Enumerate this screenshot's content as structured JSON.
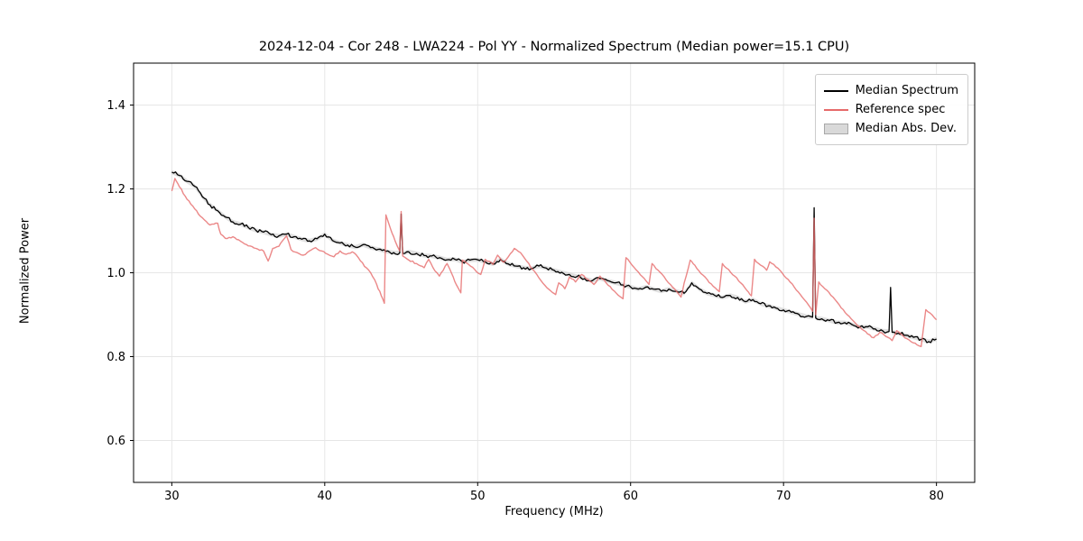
{
  "chart_data": {
    "type": "line",
    "title": "2024-12-04 - Cor 248 - LWA224 - Pol YY - Normalized Spectrum (Median power=15.1 CPU)",
    "xlabel": "Frequency (MHz)",
    "ylabel": "Normalized Power",
    "xlim": [
      27.5,
      82.5
    ],
    "ylim": [
      0.5,
      1.5
    ],
    "xticks": [
      30,
      40,
      50,
      60,
      70,
      80
    ],
    "yticks": [
      0.6,
      0.8,
      1.0,
      1.2,
      1.4
    ],
    "grid": true,
    "legend": {
      "position": "upper right",
      "entries": [
        "Median Spectrum",
        "Reference spec",
        "Median Abs. Dev."
      ]
    },
    "colors": {
      "median": "#000000",
      "reference": "#e66a6a",
      "band": "#c9c9c9"
    },
    "mad_band_halfwidth": 0.005,
    "series": [
      {
        "name": "Median Spectrum",
        "color": "#000000",
        "points": [
          [
            30.0,
            1.24
          ],
          [
            30.5,
            1.232
          ],
          [
            31.0,
            1.218
          ],
          [
            31.5,
            1.206
          ],
          [
            32.0,
            1.181
          ],
          [
            32.5,
            1.162
          ],
          [
            33.0,
            1.148
          ],
          [
            33.5,
            1.133
          ],
          [
            34.0,
            1.121
          ],
          [
            34.5,
            1.116
          ],
          [
            35.0,
            1.108
          ],
          [
            35.5,
            1.101
          ],
          [
            36.0,
            1.097
          ],
          [
            36.5,
            1.091
          ],
          [
            37.0,
            1.088
          ],
          [
            37.5,
            1.092
          ],
          [
            38.0,
            1.086
          ],
          [
            38.5,
            1.08
          ],
          [
            39.0,
            1.076
          ],
          [
            39.5,
            1.081
          ],
          [
            40.0,
            1.092
          ],
          [
            40.5,
            1.077
          ],
          [
            41.0,
            1.071
          ],
          [
            41.5,
            1.066
          ],
          [
            42.0,
            1.061
          ],
          [
            42.5,
            1.067
          ],
          [
            43.0,
            1.06
          ],
          [
            43.5,
            1.056
          ],
          [
            44.0,
            1.051
          ],
          [
            44.5,
            1.048
          ],
          [
            44.9,
            1.047
          ],
          [
            45.0,
            1.14
          ],
          [
            45.1,
            1.046
          ],
          [
            45.5,
            1.05
          ],
          [
            46.0,
            1.046
          ],
          [
            46.5,
            1.041
          ],
          [
            47.0,
            1.04
          ],
          [
            47.5,
            1.036
          ],
          [
            48.0,
            1.031
          ],
          [
            48.5,
            1.032
          ],
          [
            49.0,
            1.026
          ],
          [
            49.5,
            1.03
          ],
          [
            50.0,
            1.031
          ],
          [
            50.5,
            1.026
          ],
          [
            51.0,
            1.021
          ],
          [
            51.5,
            1.032
          ],
          [
            52.0,
            1.021
          ],
          [
            52.5,
            1.016
          ],
          [
            53.0,
            1.012
          ],
          [
            53.5,
            1.01
          ],
          [
            54.0,
            1.016
          ],
          [
            54.5,
            1.011
          ],
          [
            55.0,
            1.006
          ],
          [
            55.5,
            1.001
          ],
          [
            56.0,
            0.996
          ],
          [
            56.5,
            0.991
          ],
          [
            57.0,
            0.986
          ],
          [
            57.5,
            0.981
          ],
          [
            58.0,
            0.986
          ],
          [
            58.5,
            0.981
          ],
          [
            59.0,
            0.976
          ],
          [
            59.5,
            0.971
          ],
          [
            60.0,
            0.966
          ],
          [
            60.5,
            0.961
          ],
          [
            61.0,
            0.966
          ],
          [
            61.5,
            0.961
          ],
          [
            62.0,
            0.956
          ],
          [
            62.5,
            0.961
          ],
          [
            63.0,
            0.956
          ],
          [
            63.5,
            0.951
          ],
          [
            64.0,
            0.976
          ],
          [
            64.5,
            0.961
          ],
          [
            65.0,
            0.951
          ],
          [
            65.5,
            0.946
          ],
          [
            66.0,
            0.941
          ],
          [
            66.5,
            0.946
          ],
          [
            67.0,
            0.941
          ],
          [
            67.5,
            0.931
          ],
          [
            68.0,
            0.936
          ],
          [
            68.5,
            0.926
          ],
          [
            69.0,
            0.921
          ],
          [
            69.5,
            0.916
          ],
          [
            70.0,
            0.911
          ],
          [
            70.5,
            0.906
          ],
          [
            71.0,
            0.901
          ],
          [
            71.5,
            0.896
          ],
          [
            71.9,
            0.894
          ],
          [
            72.0,
            1.155
          ],
          [
            72.1,
            0.892
          ],
          [
            72.5,
            0.89
          ],
          [
            73.0,
            0.886
          ],
          [
            73.5,
            0.881
          ],
          [
            74.0,
            0.881
          ],
          [
            74.5,
            0.876
          ],
          [
            75.0,
            0.871
          ],
          [
            75.5,
            0.871
          ],
          [
            76.0,
            0.866
          ],
          [
            76.5,
            0.861
          ],
          [
            76.9,
            0.86
          ],
          [
            77.0,
            0.965
          ],
          [
            77.1,
            0.858
          ],
          [
            77.5,
            0.856
          ],
          [
            78.0,
            0.851
          ],
          [
            78.5,
            0.846
          ],
          [
            79.0,
            0.841
          ],
          [
            79.5,
            0.836
          ],
          [
            80.0,
            0.842
          ]
        ]
      },
      {
        "name": "Reference spec",
        "color": "#e66a6a",
        "points": [
          [
            30.0,
            1.195
          ],
          [
            30.2,
            1.225
          ],
          [
            30.5,
            1.205
          ],
          [
            31.0,
            1.175
          ],
          [
            31.5,
            1.152
          ],
          [
            32.0,
            1.131
          ],
          [
            32.5,
            1.114
          ],
          [
            33.0,
            1.118
          ],
          [
            33.2,
            1.092
          ],
          [
            33.5,
            1.082
          ],
          [
            34.0,
            1.086
          ],
          [
            34.5,
            1.075
          ],
          [
            35.0,
            1.064
          ],
          [
            35.5,
            1.058
          ],
          [
            36.0,
            1.052
          ],
          [
            36.3,
            1.028
          ],
          [
            36.6,
            1.058
          ],
          [
            37.0,
            1.063
          ],
          [
            37.5,
            1.088
          ],
          [
            37.8,
            1.055
          ],
          [
            38.2,
            1.048
          ],
          [
            38.6,
            1.042
          ],
          [
            39.0,
            1.052
          ],
          [
            39.4,
            1.06
          ],
          [
            39.8,
            1.052
          ],
          [
            40.2,
            1.044
          ],
          [
            40.6,
            1.038
          ],
          [
            41.0,
            1.052
          ],
          [
            41.4,
            1.044
          ],
          [
            41.8,
            1.05
          ],
          [
            42.2,
            1.036
          ],
          [
            42.6,
            1.015
          ],
          [
            43.0,
            1.0
          ],
          [
            43.4,
            0.972
          ],
          [
            43.7,
            0.945
          ],
          [
            43.9,
            0.927
          ],
          [
            44.0,
            1.138
          ],
          [
            44.3,
            1.105
          ],
          [
            44.6,
            1.076
          ],
          [
            44.9,
            1.052
          ],
          [
            45.0,
            1.146
          ],
          [
            45.1,
            1.04
          ],
          [
            45.5,
            1.03
          ],
          [
            46.0,
            1.022
          ],
          [
            46.5,
            1.012
          ],
          [
            46.8,
            1.032
          ],
          [
            47.2,
            1.005
          ],
          [
            47.5,
            0.992
          ],
          [
            48.0,
            1.022
          ],
          [
            48.3,
            0.998
          ],
          [
            48.6,
            0.972
          ],
          [
            48.9,
            0.952
          ],
          [
            49.0,
            1.03
          ],
          [
            49.4,
            1.02
          ],
          [
            49.8,
            1.008
          ],
          [
            50.2,
            0.996
          ],
          [
            50.5,
            1.032
          ],
          [
            51.0,
            1.02
          ],
          [
            51.3,
            1.042
          ],
          [
            51.7,
            1.025
          ],
          [
            52.0,
            1.038
          ],
          [
            52.4,
            1.058
          ],
          [
            52.8,
            1.048
          ],
          [
            53.2,
            1.028
          ],
          [
            53.6,
            1.008
          ],
          [
            54.0,
            0.988
          ],
          [
            54.4,
            0.97
          ],
          [
            54.8,
            0.956
          ],
          [
            55.1,
            0.948
          ],
          [
            55.3,
            0.976
          ],
          [
            55.7,
            0.962
          ],
          [
            56.0,
            0.99
          ],
          [
            56.4,
            0.978
          ],
          [
            56.8,
            0.996
          ],
          [
            57.2,
            0.984
          ],
          [
            57.6,
            0.972
          ],
          [
            58.0,
            0.992
          ],
          [
            58.4,
            0.976
          ],
          [
            58.8,
            0.96
          ],
          [
            59.2,
            0.946
          ],
          [
            59.5,
            0.938
          ],
          [
            59.7,
            1.036
          ],
          [
            60.1,
            1.018
          ],
          [
            60.5,
            1.002
          ],
          [
            60.9,
            0.986
          ],
          [
            61.2,
            0.972
          ],
          [
            61.4,
            1.022
          ],
          [
            61.8,
            1.006
          ],
          [
            62.2,
            0.99
          ],
          [
            62.6,
            0.972
          ],
          [
            63.0,
            0.956
          ],
          [
            63.3,
            0.942
          ],
          [
            63.5,
            0.975
          ],
          [
            63.9,
            1.03
          ],
          [
            64.2,
            1.018
          ],
          [
            64.6,
            0.998
          ],
          [
            65.0,
            0.984
          ],
          [
            65.4,
            0.968
          ],
          [
            65.8,
            0.955
          ],
          [
            66.0,
            1.022
          ],
          [
            66.4,
            1.008
          ],
          [
            66.8,
            0.992
          ],
          [
            67.2,
            0.976
          ],
          [
            67.6,
            0.958
          ],
          [
            67.9,
            0.945
          ],
          [
            68.1,
            1.032
          ],
          [
            68.5,
            1.018
          ],
          [
            68.9,
            1.006
          ],
          [
            69.1,
            1.026
          ],
          [
            69.5,
            1.014
          ],
          [
            69.9,
            1.0
          ],
          [
            70.3,
            0.984
          ],
          [
            70.7,
            0.966
          ],
          [
            71.1,
            0.948
          ],
          [
            71.5,
            0.93
          ],
          [
            71.9,
            0.908
          ],
          [
            72.0,
            1.13
          ],
          [
            72.1,
            0.9
          ],
          [
            72.3,
            0.978
          ],
          [
            72.7,
            0.962
          ],
          [
            73.1,
            0.946
          ],
          [
            73.5,
            0.93
          ],
          [
            73.9,
            0.912
          ],
          [
            74.3,
            0.896
          ],
          [
            74.7,
            0.88
          ],
          [
            75.1,
            0.866
          ],
          [
            75.5,
            0.854
          ],
          [
            75.9,
            0.845
          ],
          [
            76.3,
            0.858
          ],
          [
            76.7,
            0.848
          ],
          [
            77.1,
            0.838
          ],
          [
            77.4,
            0.862
          ],
          [
            77.8,
            0.85
          ],
          [
            78.2,
            0.84
          ],
          [
            78.6,
            0.832
          ],
          [
            79.0,
            0.824
          ],
          [
            79.3,
            0.912
          ],
          [
            79.7,
            0.9
          ],
          [
            80.0,
            0.888
          ]
        ]
      }
    ]
  }
}
